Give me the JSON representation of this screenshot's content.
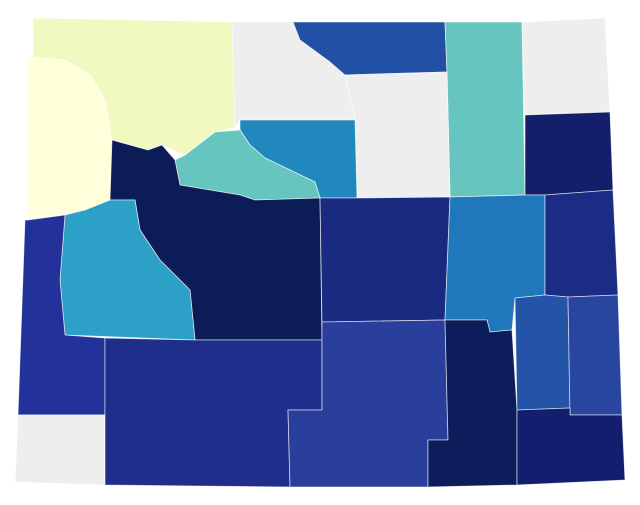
{
  "map": {
    "regions": [
      {
        "color": "#f0f9c0"
      },
      {
        "color": "#ffffd9"
      },
      {
        "color": "#eeeeee"
      },
      {
        "color": "#2250a5"
      },
      {
        "color": "#67c5c0"
      },
      {
        "color": "#eeeeee"
      },
      {
        "color": "#131f6b"
      },
      {
        "color": "#eeeeee"
      },
      {
        "color": "#2188be"
      },
      {
        "color": "#67c5c0"
      },
      {
        "color": "#0b1c56"
      },
      {
        "color": "#2ca0c7"
      },
      {
        "color": "#23319a"
      },
      {
        "color": "#eeeeee"
      },
      {
        "color": "#1f2e8a"
      },
      {
        "color": "#1a2a80"
      },
      {
        "color": "#2a3f9c"
      },
      {
        "color": "#2078bb"
      },
      {
        "color": "#1b2c84"
      },
      {
        "color": "#0d1d5c"
      },
      {
        "color": "#2354a8"
      },
      {
        "color": "#2845a0"
      },
      {
        "color": "#131f6e"
      }
    ]
  }
}
